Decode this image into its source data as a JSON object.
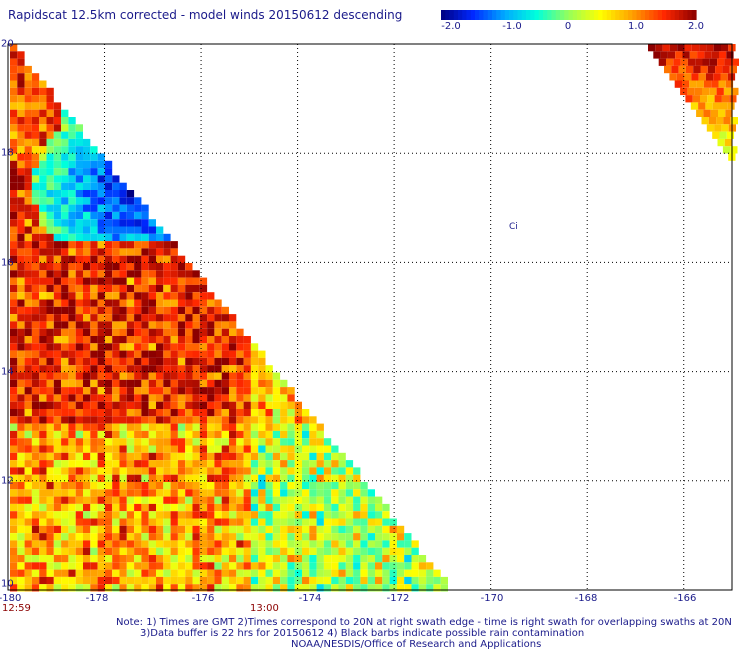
{
  "chart_data": {
    "type": "heatmap",
    "title": "Rapidscat 12.5km corrected - model winds 20150612 descending",
    "colorbar": {
      "labels": [
        "-2.0",
        "-1.0",
        "0",
        "1.0",
        "2.0"
      ],
      "range": [
        -2.0,
        2.0
      ]
    },
    "x_ticks": [
      "-180",
      "-178",
      "-176",
      "-174",
      "-172",
      "-170",
      "-168",
      "-166"
    ],
    "y_ticks": [
      "20",
      "18",
      "16",
      "14",
      "12",
      "10"
    ],
    "xlim": [
      -180,
      -165
    ],
    "ylim": [
      10,
      20
    ],
    "grid": true,
    "time_labels": [
      "12:59",
      "13:00"
    ],
    "land_label": "Ci"
  },
  "notes": {
    "line1": "Note: 1) Times are GMT 2)Times correspond to 20N at right swath edge - time is right swath for overlapping swaths at 20N",
    "line2": "3)Data buffer is 22 hrs for 20150612 4) Black barbs indicate possible rain contamination",
    "line3": "NOAA/NESDIS/Office of Research and Applications"
  },
  "colors": {
    "text": "#1a1a8a",
    "time": "#8b0000",
    "grid": "#000000"
  }
}
